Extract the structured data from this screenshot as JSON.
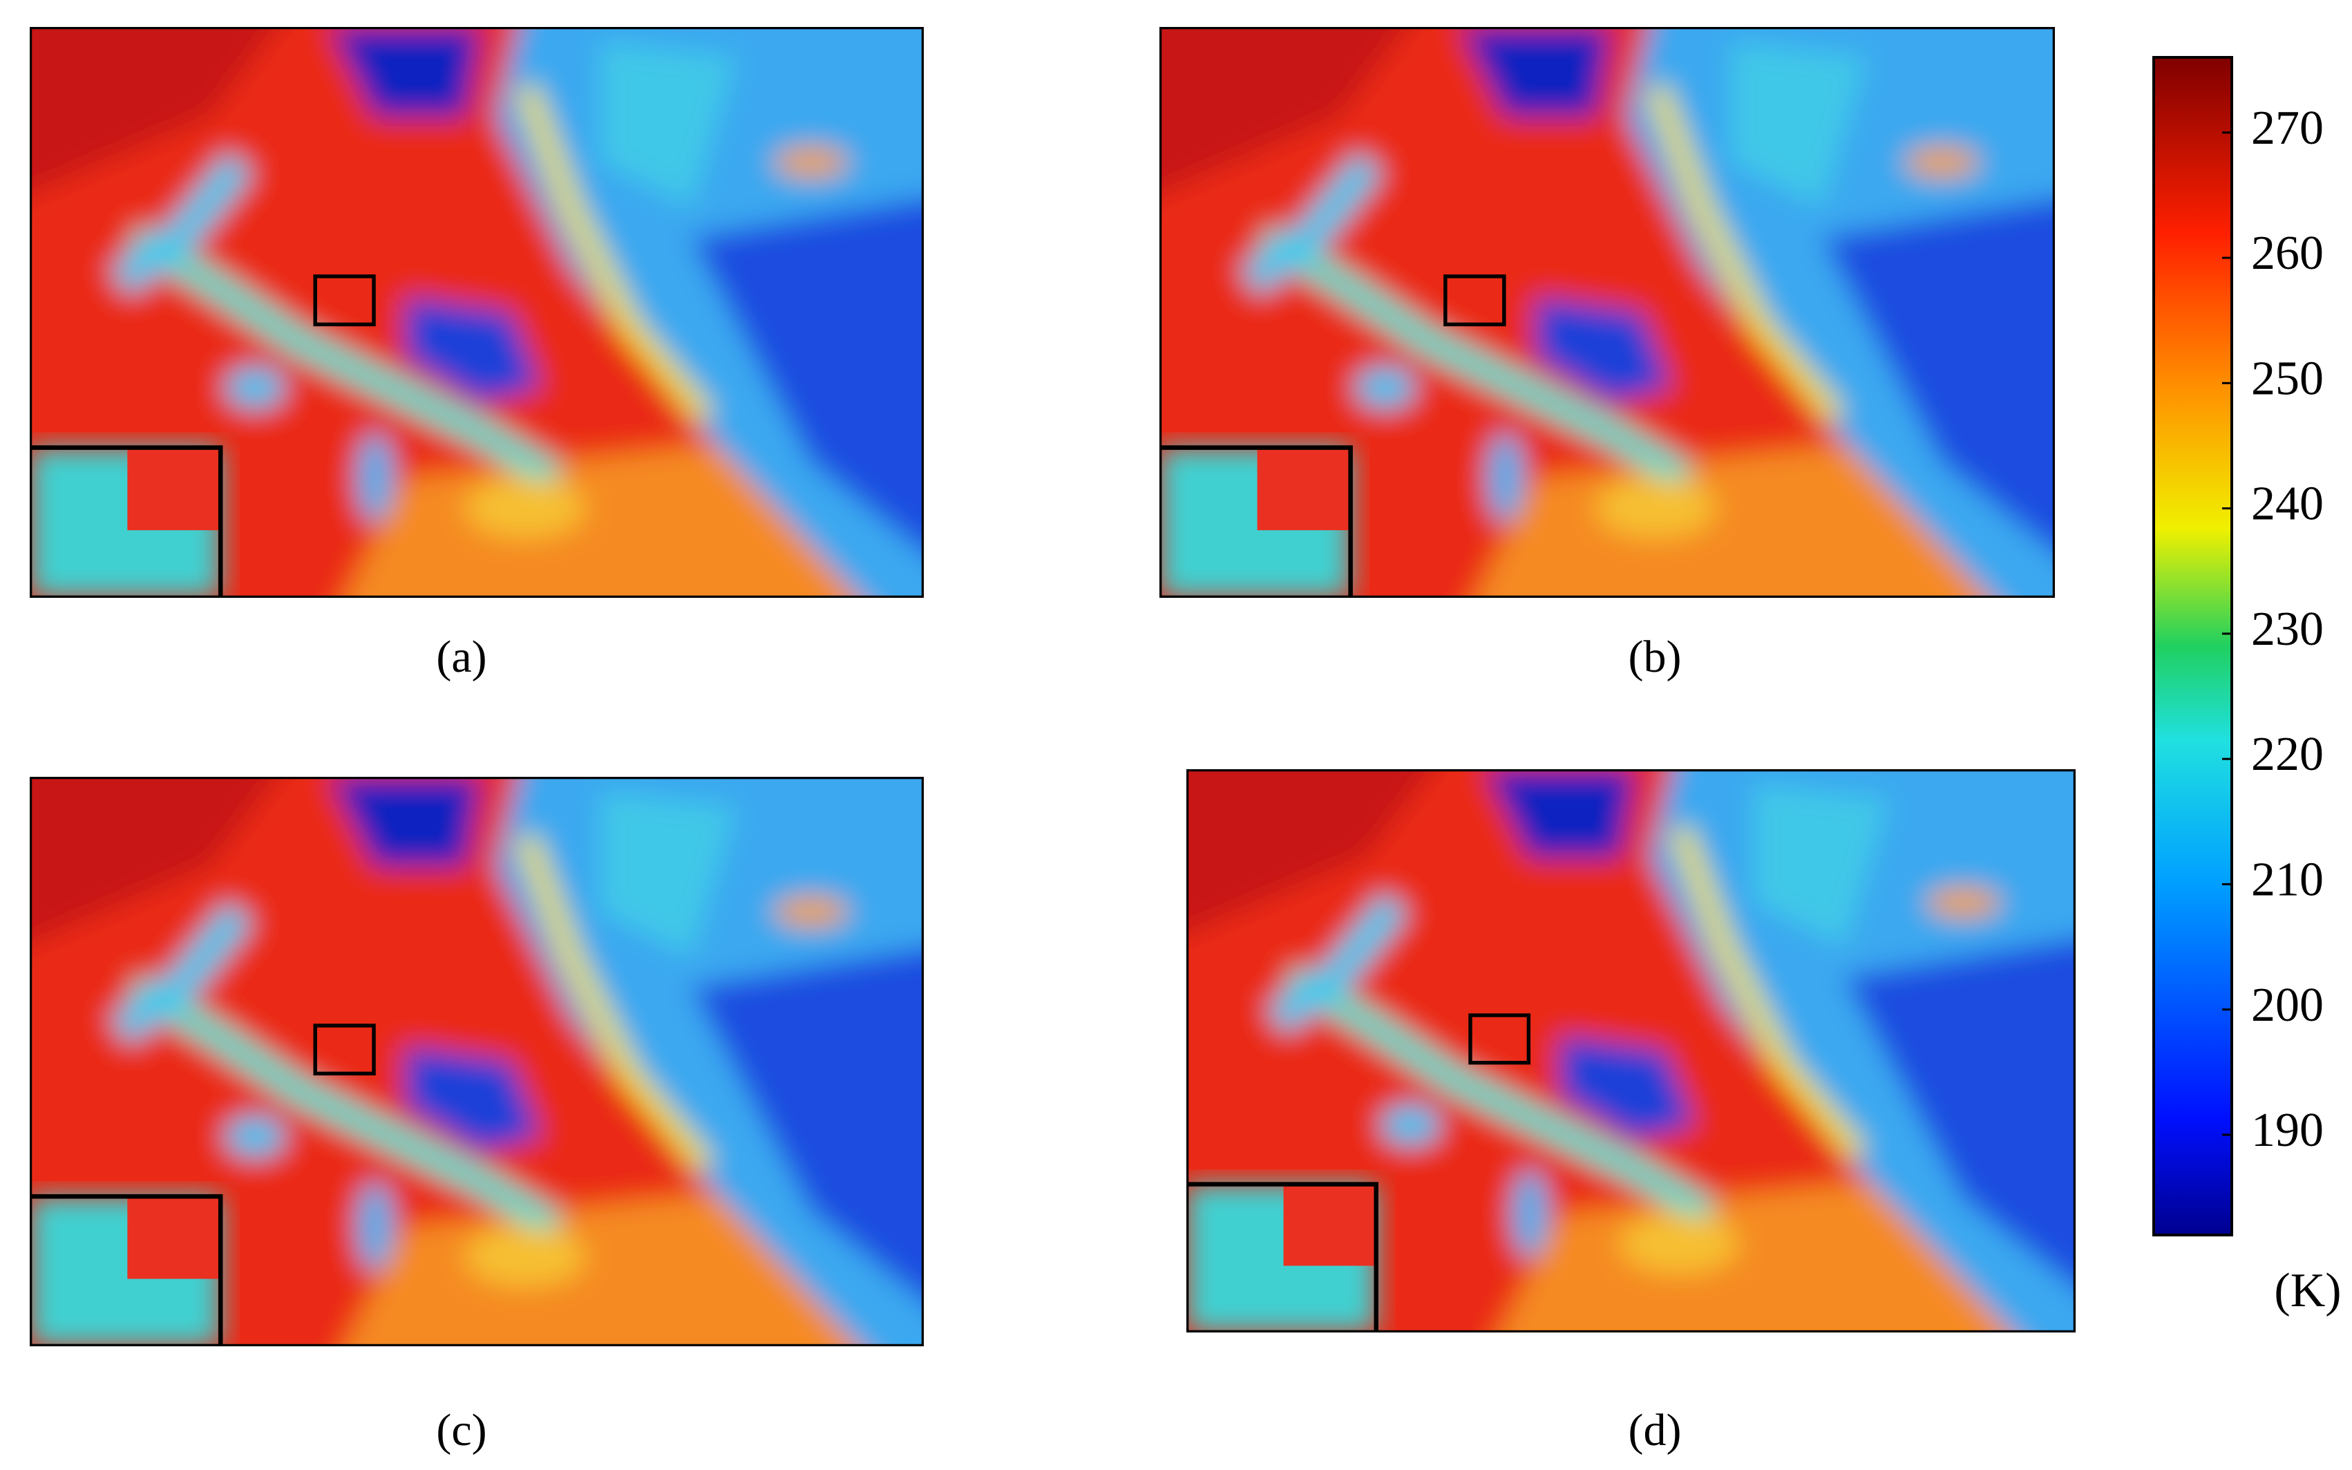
{
  "panels": [
    {
      "label": "(a)"
    },
    {
      "label": "(b)"
    },
    {
      "label": "(c)"
    },
    {
      "label": "(d)"
    }
  ],
  "colorbar": {
    "ylim": [
      182,
      276
    ],
    "yticks": [
      190,
      200,
      210,
      220,
      230,
      240,
      250,
      260,
      270
    ],
    "unit": "(K)"
  }
}
